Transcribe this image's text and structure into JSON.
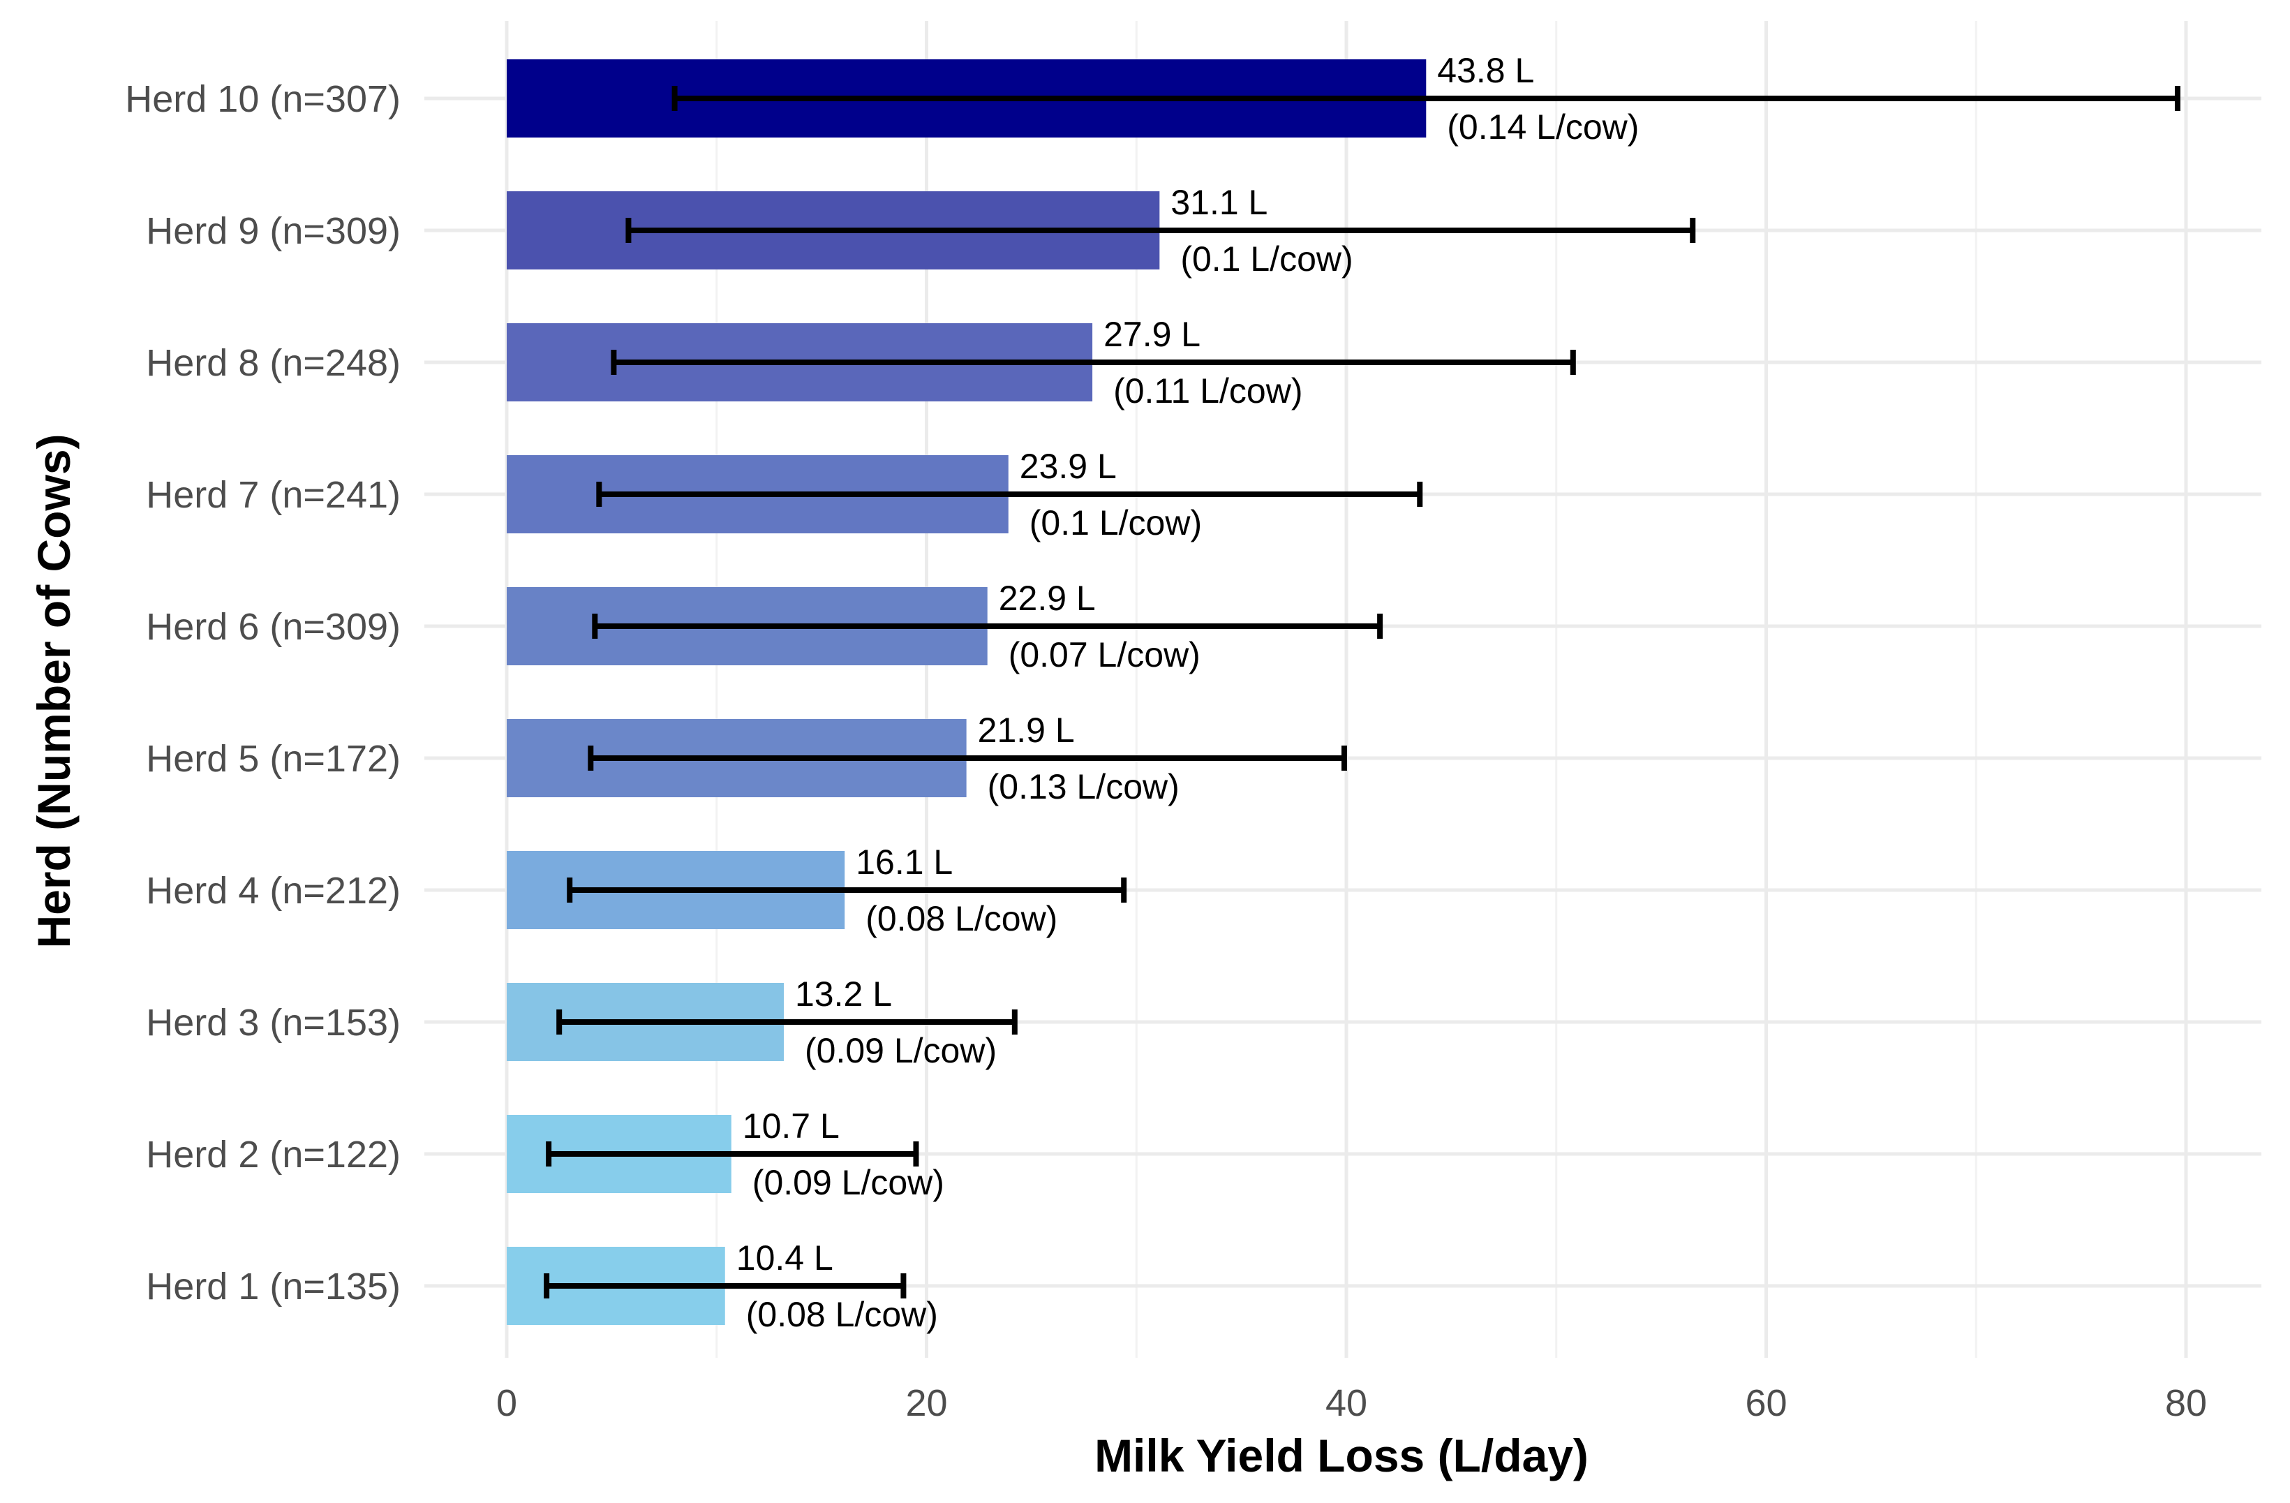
{
  "chart_data": {
    "type": "bar",
    "orientation": "horizontal",
    "xlabel": "Milk Yield Loss (L/day)",
    "ylabel": "Herd (Number of Cows)",
    "xlim": [
      0,
      83
    ],
    "xticks": [
      0,
      20,
      40,
      60,
      80
    ],
    "grid": true,
    "categories": [
      "Herd 10 (n=307)",
      "Herd 9 (n=309)",
      "Herd 8 (n=248)",
      "Herd 7 (n=241)",
      "Herd 6 (n=309)",
      "Herd 5 (n=172)",
      "Herd 4 (n=212)",
      "Herd 3 (n=153)",
      "Herd 2 (n=122)",
      "Herd 1 (n=135)"
    ],
    "values": [
      43.8,
      31.1,
      27.9,
      23.9,
      22.9,
      21.9,
      16.1,
      13.2,
      10.7,
      10.4
    ],
    "error_low": [
      8.0,
      5.8,
      5.1,
      4.4,
      4.2,
      4.0,
      3.0,
      2.5,
      2.0,
      1.9
    ],
    "error_high": [
      79.6,
      56.5,
      50.8,
      43.5,
      41.6,
      39.9,
      29.4,
      24.2,
      19.5,
      18.9
    ],
    "value_labels": [
      "43.8 L",
      "31.1 L",
      "27.9 L",
      "23.9 L",
      "22.9 L",
      "21.9 L",
      "16.1 L",
      "13.2 L",
      "10.7 L",
      "10.4 L"
    ],
    "per_cow_labels": [
      "(0.14 L/cow)",
      "(0.1 L/cow)",
      "(0.11 L/cow)",
      "(0.1 L/cow)",
      "(0.07 L/cow)",
      "(0.13 L/cow)",
      "(0.08 L/cow)",
      "(0.09 L/cow)",
      "(0.09 L/cow)",
      "(0.08 L/cow)"
    ],
    "colors": [
      "#00008B",
      "#4B52AE",
      "#5A67BA",
      "#6277C2",
      "#6882C6",
      "#6B87C9",
      "#7AABDE",
      "#86C4E6",
      "#87CDEB",
      "#87CEEB"
    ]
  }
}
